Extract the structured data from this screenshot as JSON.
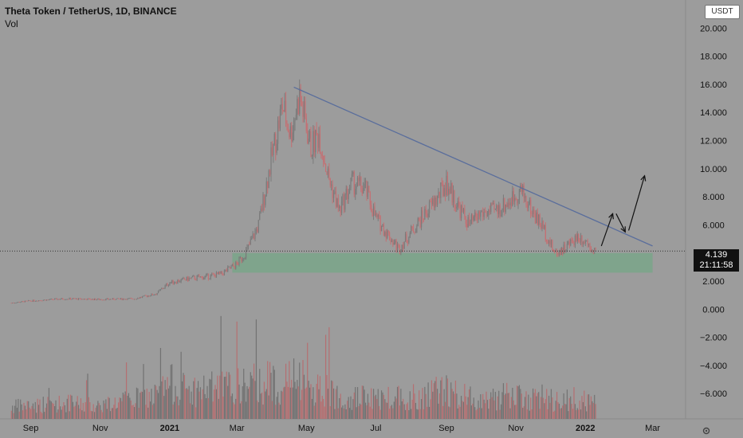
{
  "header": {
    "title": "Theta Token / TetherUS, 1D, BINANCE",
    "volume_label": "Vol"
  },
  "currency_badge": "USDT",
  "last_price": {
    "value": "4.139",
    "countdown": "21:11:58"
  },
  "colors": {
    "background": "#9c9c9c",
    "candle": "#c56f72",
    "candle_dark": "#6e6e6e",
    "trendline": "#5a6e9c",
    "support_zone": "#7aa68a",
    "price_line": "#333333"
  },
  "chart_data": {
    "type": "line",
    "title": "Theta Token / TetherUS, 1D, BINANCE",
    "xlabel": "",
    "ylabel": "",
    "x_tick_labels": [
      "Sep",
      "Nov",
      "2021",
      "Mar",
      "May",
      "Jul",
      "Sep",
      "Nov",
      "2022",
      "Mar"
    ],
    "y_tick_labels": [
      "20.000",
      "18.000",
      "16.000",
      "14.000",
      "12.000",
      "10.000",
      "8.000",
      "6.000",
      "4.000",
      "2.000",
      "0.000",
      "−2.000",
      "−4.000",
      "−6.000"
    ],
    "y_top_partial_label": "2",
    "ylim": [
      -7.8,
      22.0
    ],
    "dates": [
      "2020-08-15",
      "2020-09-01",
      "2020-10-01",
      "2020-11-01",
      "2020-12-01",
      "2020-12-20",
      "2021-01-01",
      "2021-01-20",
      "2021-02-01",
      "2021-02-15",
      "2021-03-01",
      "2021-03-10",
      "2021-03-20",
      "2021-04-01",
      "2021-04-10",
      "2021-04-17",
      "2021-04-25",
      "2021-05-05",
      "2021-05-12",
      "2021-05-20",
      "2021-05-30",
      "2021-06-10",
      "2021-06-22",
      "2021-07-01",
      "2021-07-10",
      "2021-07-21",
      "2021-08-01",
      "2021-08-15",
      "2021-08-25",
      "2021-09-01",
      "2021-09-10",
      "2021-09-21",
      "2021-10-01",
      "2021-10-15",
      "2021-10-28",
      "2021-11-05",
      "2021-11-15",
      "2021-11-25",
      "2021-12-05",
      "2021-12-15",
      "2021-12-25",
      "2022-01-01",
      "2022-01-10"
    ],
    "price": [
      0.45,
      0.6,
      0.75,
      0.7,
      0.75,
      1.1,
      1.9,
      2.2,
      2.3,
      2.5,
      3.2,
      4.2,
      6.0,
      11.0,
      14.5,
      12.5,
      15.2,
      11.5,
      12.5,
      9.5,
      7.0,
      9.0,
      8.5,
      6.5,
      5.5,
      4.3,
      5.5,
      7.0,
      8.0,
      9.0,
      7.5,
      6.0,
      6.8,
      7.0,
      7.8,
      8.5,
      7.0,
      5.8,
      4.0,
      4.4,
      5.2,
      4.9,
      4.2
    ],
    "volume": [
      0.3,
      0.35,
      0.4,
      0.35,
      0.5,
      0.6,
      0.9,
      0.7,
      0.75,
      0.8,
      0.8,
      0.85,
      0.9,
      0.95,
      0.85,
      1.0,
      0.9,
      0.75,
      0.8,
      0.7,
      0.6,
      0.55,
      0.55,
      0.5,
      0.55,
      0.6,
      0.55,
      0.65,
      0.7,
      0.75,
      0.6,
      0.55,
      0.5,
      0.55,
      0.6,
      0.55,
      0.5,
      0.55,
      0.45,
      0.5,
      0.5,
      0.45,
      0.4
    ],
    "trendline": {
      "from": {
        "date": "2021-04-20",
        "value": 15.8
      },
      "to": {
        "date": "2022-03-01",
        "value": 4.5
      }
    },
    "support_zone": {
      "from_date": "2021-02-25",
      "to_date": "2022-03-01",
      "low": 2.6,
      "high": 4.0
    },
    "current_price_line": 4.139,
    "projection_arrows": [
      {
        "from": {
          "date": "2022-01-15",
          "value": 4.5
        },
        "to": {
          "date": "2022-01-25",
          "value": 6.8
        }
      },
      {
        "from": {
          "date": "2022-01-28",
          "value": 6.8
        },
        "to": {
          "date": "2022-02-05",
          "value": 5.5
        }
      },
      {
        "from": {
          "date": "2022-02-08",
          "value": 5.6
        },
        "to": {
          "date": "2022-02-22",
          "value": 9.5
        }
      }
    ]
  }
}
